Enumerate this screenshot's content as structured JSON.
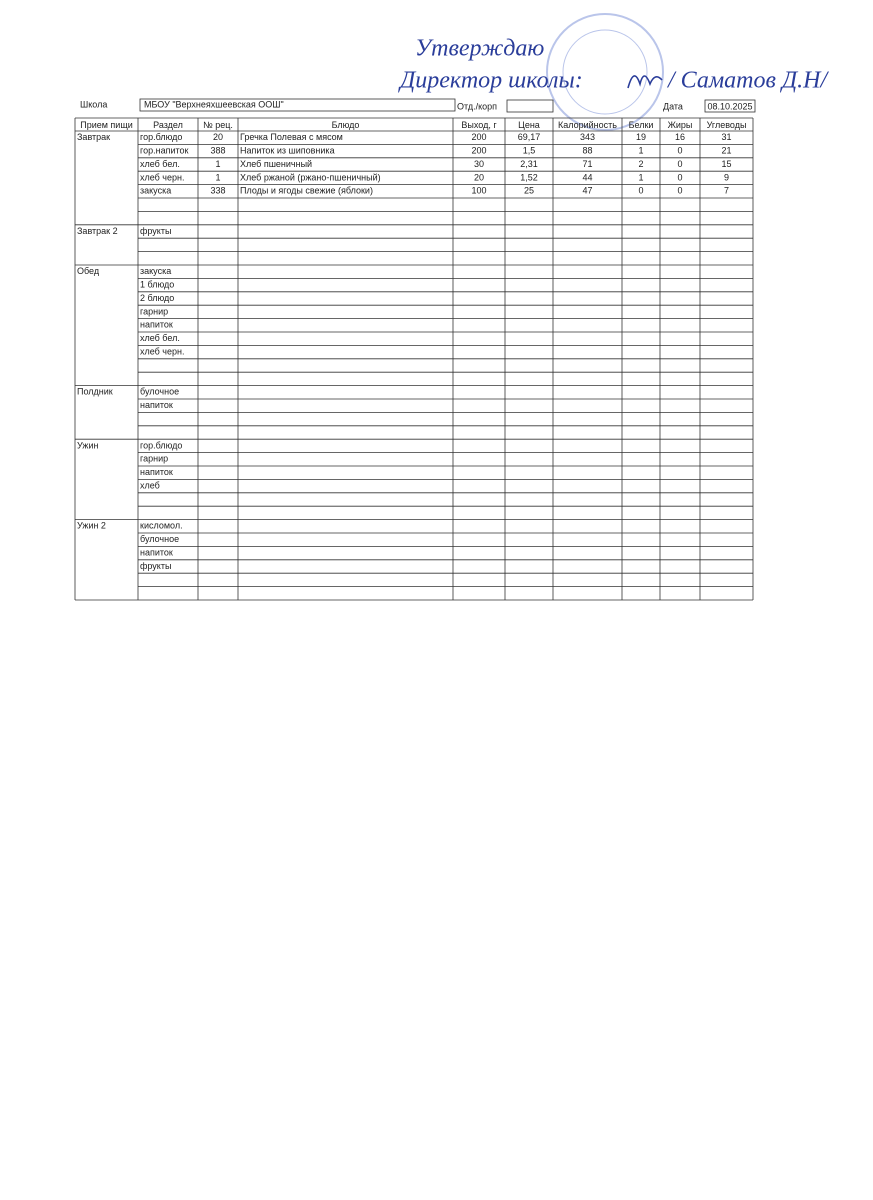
{
  "approval": {
    "line1": "Утверждаю",
    "line2": "Директор школы:",
    "line3": "/ Саматов Д.Н/"
  },
  "header": {
    "school_label": "Школа",
    "school": "МБОУ \"Верхнеяхшеевская ООШ\"",
    "dept_label": "Отд./корп",
    "date_label": "Дата",
    "date": "08.10.2025"
  },
  "table": {
    "columns": [
      "Прием пищи",
      "Раздел",
      "№ рец.",
      "Блюдо",
      "Выход, г",
      "Цена",
      "Калорийность",
      "Белки",
      "Жиры",
      "Углеводы"
    ],
    "meals": [
      {
        "name": "Завтрак",
        "rows": [
          [
            "гор.блюдо",
            "20",
            "Гречка Полевая с мясом",
            "200",
            "69,17",
            "343",
            "19",
            "16",
            "31"
          ],
          [
            "гор.напиток",
            "388",
            "Напиток из шиповника",
            "200",
            "1,5",
            "88",
            "1",
            "0",
            "21"
          ],
          [
            "хлеб бел.",
            "1",
            "Хлеб пшеничный",
            "30",
            "2,31",
            "71",
            "2",
            "0",
            "15"
          ],
          [
            "хлеб черн.",
            "1",
            "Хлеб ржаной (ржано-пшеничный)",
            "20",
            "1,52",
            "44",
            "1",
            "0",
            "9"
          ],
          [
            "закуска",
            "338",
            "Плоды и ягоды свежие (яблоки)",
            "100",
            "25",
            "47",
            "0",
            "0",
            "7"
          ]
        ]
      },
      {
        "name": "Завтрак 2",
        "rows": [
          [
            "фрукты"
          ]
        ]
      },
      {
        "name": "Обед",
        "rows": [
          [
            "закуска"
          ],
          [
            "1 блюдо"
          ],
          [
            "2 блюдо"
          ],
          [
            "гарнир"
          ],
          [
            "напиток"
          ],
          [
            "хлеб бел."
          ],
          [
            "хлеб черн."
          ]
        ]
      },
      {
        "name": "Полдник",
        "rows": [
          [
            "булочное"
          ],
          [
            "напиток"
          ]
        ]
      },
      {
        "name": "Ужин",
        "rows": [
          [
            "гор.блюдо"
          ],
          [
            "гарнир"
          ],
          [
            "напиток"
          ],
          [
            "хлеб"
          ]
        ]
      },
      {
        "name": "Ужин 2",
        "rows": [
          [
            "кисломол."
          ],
          [
            "булочное"
          ],
          [
            "напиток"
          ],
          [
            "фрукты"
          ]
        ]
      }
    ]
  }
}
